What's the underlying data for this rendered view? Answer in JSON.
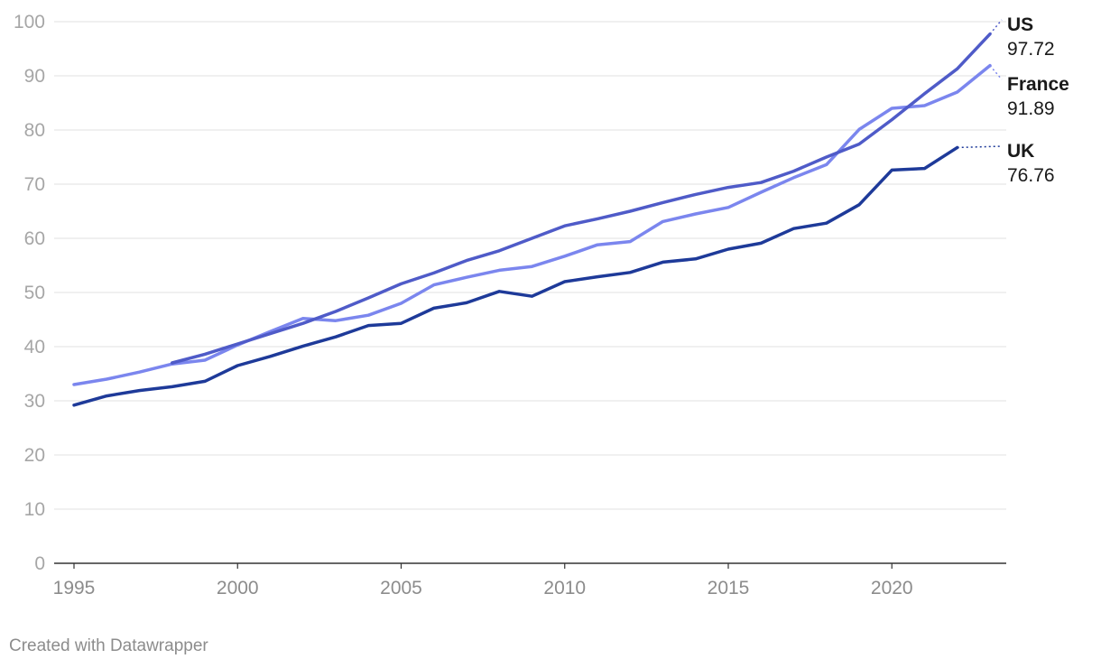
{
  "chart_data": {
    "type": "line",
    "title": "",
    "xlabel": "",
    "ylabel": "",
    "xlim": [
      1995,
      2023
    ],
    "ylim": [
      0,
      100
    ],
    "x_ticks": [
      1995,
      2000,
      2005,
      2010,
      2015,
      2020
    ],
    "y_ticks": [
      0,
      10,
      20,
      30,
      40,
      50,
      60,
      70,
      80,
      90,
      100
    ],
    "grid": "horizontal",
    "series": [
      {
        "name": "France",
        "color": "#7b86ee",
        "label_value": "91.89",
        "x": [
          1995,
          1996,
          1997,
          1998,
          1999,
          2000,
          2001,
          2002,
          2003,
          2004,
          2005,
          2006,
          2007,
          2008,
          2009,
          2010,
          2011,
          2012,
          2013,
          2014,
          2015,
          2016,
          2017,
          2018,
          2019,
          2020,
          2021,
          2022,
          2023
        ],
        "values": [
          33.0,
          34.0,
          35.3,
          36.8,
          37.5,
          40.3,
          42.8,
          45.2,
          44.8,
          45.8,
          48.0,
          51.4,
          52.8,
          54.1,
          54.8,
          56.7,
          58.8,
          59.4,
          63.1,
          64.5,
          65.7,
          68.5,
          71.2,
          73.6,
          80.1,
          84.0,
          84.5,
          87.0,
          91.89
        ]
      },
      {
        "name": "US",
        "color": "#4f5bc8",
        "label_value": "97.72",
        "x": [
          1998,
          1999,
          2000,
          2001,
          2002,
          2003,
          2004,
          2005,
          2006,
          2007,
          2008,
          2009,
          2010,
          2011,
          2012,
          2013,
          2014,
          2015,
          2016,
          2017,
          2018,
          2019,
          2020,
          2021,
          2022,
          2023
        ],
        "values": [
          37.0,
          38.6,
          40.5,
          42.4,
          44.3,
          46.5,
          49.0,
          51.6,
          53.6,
          55.9,
          57.7,
          60.0,
          62.3,
          63.6,
          65.0,
          66.6,
          68.1,
          69.4,
          70.3,
          72.4,
          75.0,
          77.4,
          81.9,
          86.7,
          91.3,
          97.72
        ]
      },
      {
        "name": "UK",
        "color": "#1e3a99",
        "label_value": "76.76",
        "x": [
          1995,
          1996,
          1997,
          1998,
          1999,
          2000,
          2001,
          2002,
          2003,
          2004,
          2005,
          2006,
          2007,
          2008,
          2009,
          2010,
          2011,
          2012,
          2013,
          2014,
          2015,
          2016,
          2017,
          2018,
          2019,
          2020,
          2021,
          2022
        ],
        "values": [
          29.2,
          30.9,
          31.9,
          32.6,
          33.6,
          36.5,
          38.2,
          40.1,
          41.8,
          43.9,
          44.3,
          47.1,
          48.1,
          50.2,
          49.3,
          52.0,
          52.9,
          53.7,
          55.6,
          56.2,
          58.0,
          59.1,
          61.8,
          62.8,
          66.2,
          72.6,
          72.9,
          76.76
        ]
      }
    ]
  },
  "footer": {
    "credit": "Created with Datawrapper"
  }
}
